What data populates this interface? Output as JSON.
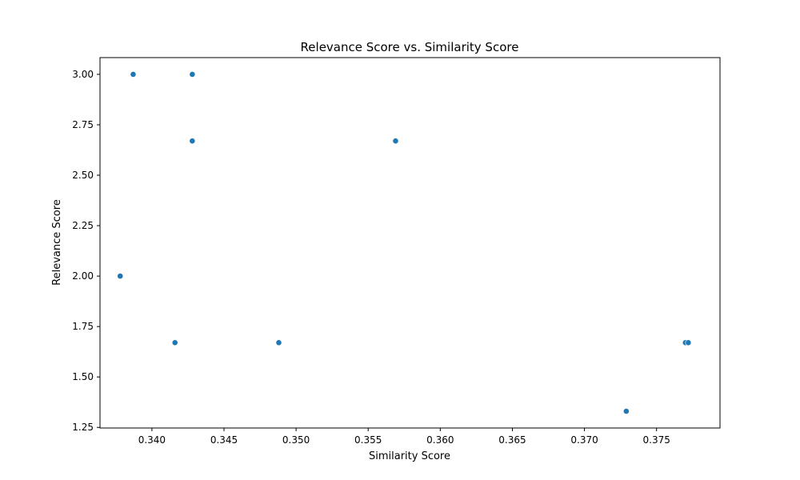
{
  "chart_data": {
    "type": "scatter",
    "title": "Relevance Score vs. Similarity Score",
    "xlabel": "Similarity Score",
    "ylabel": "Relevance Score",
    "xlim": [
      0.3364,
      0.3794
    ],
    "ylim": [
      1.247,
      3.083
    ],
    "xticks": [
      0.34,
      0.345,
      0.35,
      0.355,
      0.36,
      0.365,
      0.37,
      0.375
    ],
    "xtick_labels": [
      "0.340",
      "0.345",
      "0.350",
      "0.355",
      "0.360",
      "0.365",
      "0.370",
      "0.375"
    ],
    "yticks": [
      1.25,
      1.5,
      1.75,
      2.0,
      2.25,
      2.5,
      2.75,
      3.0
    ],
    "ytick_labels": [
      "1.25",
      "1.50",
      "1.75",
      "2.00",
      "2.25",
      "2.50",
      "2.75",
      "3.00"
    ],
    "grid": false,
    "marker_color": "#1f77b4",
    "points": [
      {
        "x": 0.3387,
        "y": 3.0
      },
      {
        "x": 0.3428,
        "y": 3.0
      },
      {
        "x": 0.3428,
        "y": 2.67
      },
      {
        "x": 0.3569,
        "y": 2.67
      },
      {
        "x": 0.3378,
        "y": 2.0
      },
      {
        "x": 0.3416,
        "y": 1.67
      },
      {
        "x": 0.3488,
        "y": 1.67
      },
      {
        "x": 0.377,
        "y": 1.67
      },
      {
        "x": 0.3772,
        "y": 1.67
      },
      {
        "x": 0.3729,
        "y": 1.33
      }
    ]
  }
}
